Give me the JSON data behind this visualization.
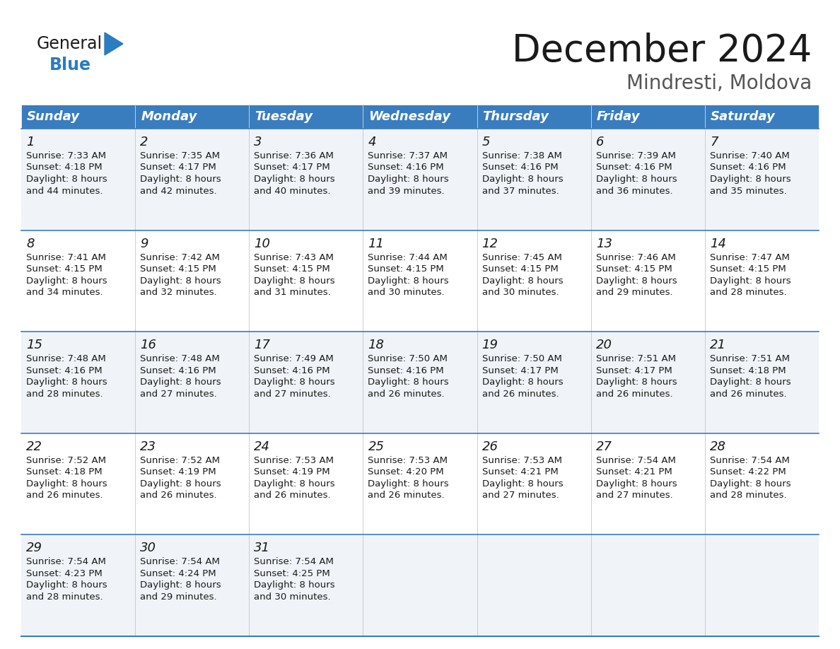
{
  "title": "December 2024",
  "subtitle": "Mindresti, Moldova",
  "header_color": "#3a7dbf",
  "header_text_color": "#ffffff",
  "cell_bg_odd": "#f0f4f8",
  "cell_bg_even": "#ffffff",
  "day_names": [
    "Sunday",
    "Monday",
    "Tuesday",
    "Wednesday",
    "Thursday",
    "Friday",
    "Saturday"
  ],
  "title_fontsize": 38,
  "subtitle_fontsize": 20,
  "header_fontsize": 13,
  "day_num_fontsize": 13,
  "info_fontsize": 9.5,
  "calendar_data": [
    [
      {
        "day": 1,
        "sunrise": "7:33 AM",
        "sunset": "4:18 PM",
        "daylight_h": "8 hours",
        "daylight_m": "44 minutes"
      },
      {
        "day": 2,
        "sunrise": "7:35 AM",
        "sunset": "4:17 PM",
        "daylight_h": "8 hours",
        "daylight_m": "42 minutes"
      },
      {
        "day": 3,
        "sunrise": "7:36 AM",
        "sunset": "4:17 PM",
        "daylight_h": "8 hours",
        "daylight_m": "40 minutes"
      },
      {
        "day": 4,
        "sunrise": "7:37 AM",
        "sunset": "4:16 PM",
        "daylight_h": "8 hours",
        "daylight_m": "39 minutes"
      },
      {
        "day": 5,
        "sunrise": "7:38 AM",
        "sunset": "4:16 PM",
        "daylight_h": "8 hours",
        "daylight_m": "37 minutes"
      },
      {
        "day": 6,
        "sunrise": "7:39 AM",
        "sunset": "4:16 PM",
        "daylight_h": "8 hours",
        "daylight_m": "36 minutes"
      },
      {
        "day": 7,
        "sunrise": "7:40 AM",
        "sunset": "4:16 PM",
        "daylight_h": "8 hours",
        "daylight_m": "35 minutes"
      }
    ],
    [
      {
        "day": 8,
        "sunrise": "7:41 AM",
        "sunset": "4:15 PM",
        "daylight_h": "8 hours",
        "daylight_m": "34 minutes"
      },
      {
        "day": 9,
        "sunrise": "7:42 AM",
        "sunset": "4:15 PM",
        "daylight_h": "8 hours",
        "daylight_m": "32 minutes"
      },
      {
        "day": 10,
        "sunrise": "7:43 AM",
        "sunset": "4:15 PM",
        "daylight_h": "8 hours",
        "daylight_m": "31 minutes"
      },
      {
        "day": 11,
        "sunrise": "7:44 AM",
        "sunset": "4:15 PM",
        "daylight_h": "8 hours",
        "daylight_m": "30 minutes"
      },
      {
        "day": 12,
        "sunrise": "7:45 AM",
        "sunset": "4:15 PM",
        "daylight_h": "8 hours",
        "daylight_m": "30 minutes"
      },
      {
        "day": 13,
        "sunrise": "7:46 AM",
        "sunset": "4:15 PM",
        "daylight_h": "8 hours",
        "daylight_m": "29 minutes"
      },
      {
        "day": 14,
        "sunrise": "7:47 AM",
        "sunset": "4:15 PM",
        "daylight_h": "8 hours",
        "daylight_m": "28 minutes"
      }
    ],
    [
      {
        "day": 15,
        "sunrise": "7:48 AM",
        "sunset": "4:16 PM",
        "daylight_h": "8 hours",
        "daylight_m": "28 minutes"
      },
      {
        "day": 16,
        "sunrise": "7:48 AM",
        "sunset": "4:16 PM",
        "daylight_h": "8 hours",
        "daylight_m": "27 minutes"
      },
      {
        "day": 17,
        "sunrise": "7:49 AM",
        "sunset": "4:16 PM",
        "daylight_h": "8 hours",
        "daylight_m": "27 minutes"
      },
      {
        "day": 18,
        "sunrise": "7:50 AM",
        "sunset": "4:16 PM",
        "daylight_h": "8 hours",
        "daylight_m": "26 minutes"
      },
      {
        "day": 19,
        "sunrise": "7:50 AM",
        "sunset": "4:17 PM",
        "daylight_h": "8 hours",
        "daylight_m": "26 minutes"
      },
      {
        "day": 20,
        "sunrise": "7:51 AM",
        "sunset": "4:17 PM",
        "daylight_h": "8 hours",
        "daylight_m": "26 minutes"
      },
      {
        "day": 21,
        "sunrise": "7:51 AM",
        "sunset": "4:18 PM",
        "daylight_h": "8 hours",
        "daylight_m": "26 minutes"
      }
    ],
    [
      {
        "day": 22,
        "sunrise": "7:52 AM",
        "sunset": "4:18 PM",
        "daylight_h": "8 hours",
        "daylight_m": "26 minutes"
      },
      {
        "day": 23,
        "sunrise": "7:52 AM",
        "sunset": "4:19 PM",
        "daylight_h": "8 hours",
        "daylight_m": "26 minutes"
      },
      {
        "day": 24,
        "sunrise": "7:53 AM",
        "sunset": "4:19 PM",
        "daylight_h": "8 hours",
        "daylight_m": "26 minutes"
      },
      {
        "day": 25,
        "sunrise": "7:53 AM",
        "sunset": "4:20 PM",
        "daylight_h": "8 hours",
        "daylight_m": "26 minutes"
      },
      {
        "day": 26,
        "sunrise": "7:53 AM",
        "sunset": "4:21 PM",
        "daylight_h": "8 hours",
        "daylight_m": "27 minutes"
      },
      {
        "day": 27,
        "sunrise": "7:54 AM",
        "sunset": "4:21 PM",
        "daylight_h": "8 hours",
        "daylight_m": "27 minutes"
      },
      {
        "day": 28,
        "sunrise": "7:54 AM",
        "sunset": "4:22 PM",
        "daylight_h": "8 hours",
        "daylight_m": "28 minutes"
      }
    ],
    [
      {
        "day": 29,
        "sunrise": "7:54 AM",
        "sunset": "4:23 PM",
        "daylight_h": "8 hours",
        "daylight_m": "28 minutes"
      },
      {
        "day": 30,
        "sunrise": "7:54 AM",
        "sunset": "4:24 PM",
        "daylight_h": "8 hours",
        "daylight_m": "29 minutes"
      },
      {
        "day": 31,
        "sunrise": "7:54 AM",
        "sunset": "4:25 PM",
        "daylight_h": "8 hours",
        "daylight_m": "30 minutes"
      },
      null,
      null,
      null,
      null
    ]
  ],
  "logo_general_color": "#1a1a1a",
  "logo_blue_color": "#2a7dc0"
}
